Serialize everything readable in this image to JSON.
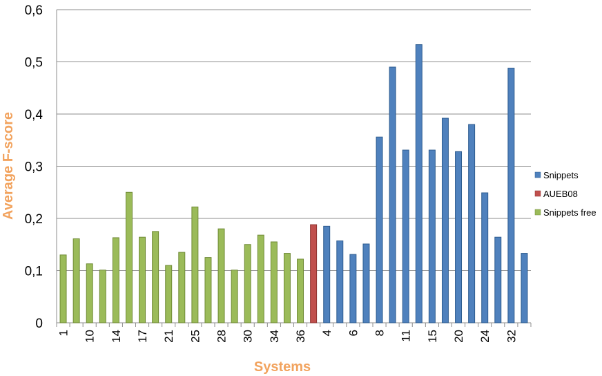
{
  "chart_data": {
    "type": "bar",
    "title": "",
    "xlabel": "Systems",
    "ylabel": "Average F-score",
    "ylim": [
      0,
      0.6
    ],
    "yticks": [
      0,
      0.1,
      0.2,
      0.3,
      0.4,
      0.5,
      0.6
    ],
    "ytick_labels": [
      "0",
      "0,1",
      "0,2",
      "0,3",
      "0,4",
      "0,5",
      "0,6"
    ],
    "grid": true,
    "legend_position": "right",
    "colors": {
      "Snippets": "#4F81BD",
      "AUEB08": "#C0504D",
      "Snippets free": "#9BBB59"
    },
    "colors_dark": {
      "Snippets": "#2E5C8F",
      "AUEB08": "#8E3330",
      "Snippets free": "#6F8A35"
    },
    "legend": [
      "Snippets",
      "AUEB08",
      "Snippets free"
    ],
    "bars": [
      {
        "group": "Snippets free",
        "label": "1",
        "value": 0.13
      },
      {
        "group": "Snippets free",
        "label": "",
        "value": 0.161
      },
      {
        "group": "Snippets free",
        "label": "10",
        "value": 0.113
      },
      {
        "group": "Snippets free",
        "label": "",
        "value": 0.101
      },
      {
        "group": "Snippets free",
        "label": "14",
        "value": 0.163
      },
      {
        "group": "Snippets free",
        "label": "",
        "value": 0.25
      },
      {
        "group": "Snippets free",
        "label": "17",
        "value": 0.164
      },
      {
        "group": "Snippets free",
        "label": "",
        "value": 0.175
      },
      {
        "group": "Snippets free",
        "label": "21",
        "value": 0.11
      },
      {
        "group": "Snippets free",
        "label": "",
        "value": 0.135
      },
      {
        "group": "Snippets free",
        "label": "25",
        "value": 0.222
      },
      {
        "group": "Snippets free",
        "label": "",
        "value": 0.125
      },
      {
        "group": "Snippets free",
        "label": "28",
        "value": 0.18
      },
      {
        "group": "Snippets free",
        "label": "",
        "value": 0.101
      },
      {
        "group": "Snippets free",
        "label": "30",
        "value": 0.15
      },
      {
        "group": "Snippets free",
        "label": "",
        "value": 0.168
      },
      {
        "group": "Snippets free",
        "label": "34",
        "value": 0.155
      },
      {
        "group": "Snippets free",
        "label": "",
        "value": 0.133
      },
      {
        "group": "Snippets free",
        "label": "36",
        "value": 0.122
      },
      {
        "group": "AUEB08",
        "label": "",
        "value": 0.188
      },
      {
        "group": "Snippets",
        "label": "4",
        "value": 0.185
      },
      {
        "group": "Snippets",
        "label": "",
        "value": 0.157
      },
      {
        "group": "Snippets",
        "label": "6",
        "value": 0.131
      },
      {
        "group": "Snippets",
        "label": "",
        "value": 0.151
      },
      {
        "group": "Snippets",
        "label": "8",
        "value": 0.356
      },
      {
        "group": "Snippets",
        "label": "",
        "value": 0.49
      },
      {
        "group": "Snippets",
        "label": "11",
        "value": 0.331
      },
      {
        "group": "Snippets",
        "label": "",
        "value": 0.533
      },
      {
        "group": "Snippets",
        "label": "15",
        "value": 0.331
      },
      {
        "group": "Snippets",
        "label": "",
        "value": 0.392
      },
      {
        "group": "Snippets",
        "label": "20",
        "value": 0.328
      },
      {
        "group": "Snippets",
        "label": "",
        "value": 0.38
      },
      {
        "group": "Snippets",
        "label": "24",
        "value": 0.249
      },
      {
        "group": "Snippets",
        "label": "",
        "value": 0.164
      },
      {
        "group": "Snippets",
        "label": "32",
        "value": 0.488
      },
      {
        "group": "Snippets",
        "label": "",
        "value": 0.133
      }
    ]
  }
}
